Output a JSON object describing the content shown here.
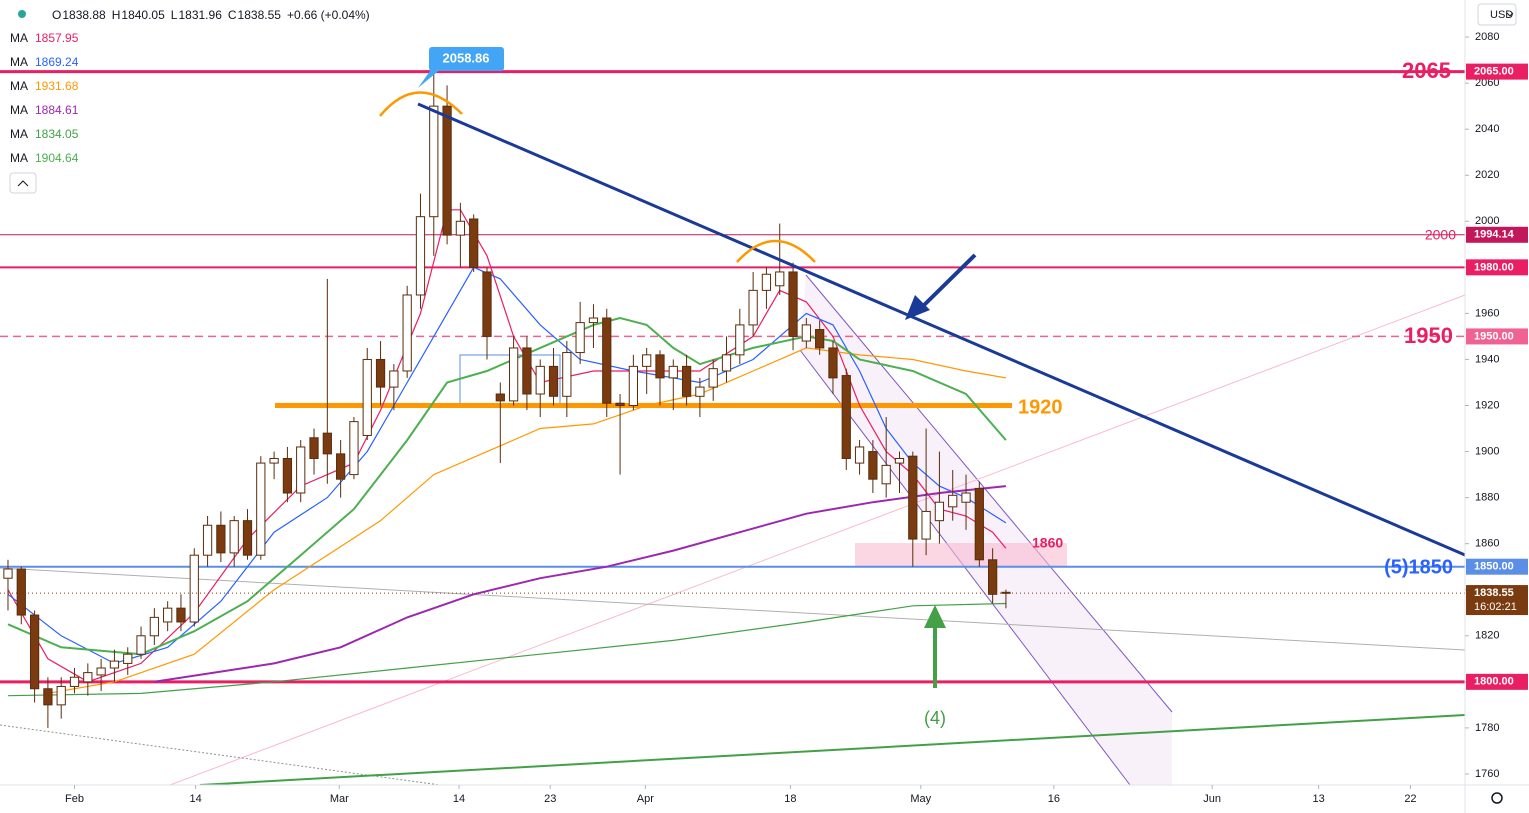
{
  "chart_data": {
    "type": "candlestick",
    "currency": "USD",
    "ohlc_letters": [
      "O",
      "H",
      "L",
      "C"
    ],
    "change": "+0.66 (+0.04%)",
    "countdown": "16:02:21",
    "up_color": "#ffffff",
    "down_color": "#7a3b10",
    "edge_color": "#5a2d0c",
    "xlim": [
      -0.6,
      109.5
    ],
    "ylim": [
      1755.2,
      2096.1
    ],
    "xticks": [
      {
        "value": 5.0,
        "label": "Feb"
      },
      {
        "value": 14.1,
        "label": "14"
      },
      {
        "value": 24.9,
        "label": "Mar"
      },
      {
        "value": 33.9,
        "label": "14"
      },
      {
        "value": 40.75,
        "label": "23"
      },
      {
        "value": 47.9,
        "label": "Apr"
      },
      {
        "value": 58.8,
        "label": "18"
      },
      {
        "value": 68.6,
        "label": "May"
      },
      {
        "value": 78.6,
        "label": "16"
      },
      {
        "value": 90.5,
        "label": "Jun"
      },
      {
        "value": 98.5,
        "label": "13"
      },
      {
        "value": 105.4,
        "label": "22"
      }
    ],
    "yticks": [
      1760,
      1780,
      1800,
      1820,
      1840,
      1860,
      1880,
      1900,
      1920,
      1940,
      1960,
      1980,
      2000,
      2020,
      2040,
      2060,
      2080
    ],
    "ohlc": [
      [
        1845,
        1853,
        1831,
        1849
      ],
      [
        1849,
        1850,
        1825,
        1829
      ],
      [
        1829,
        1831,
        1791,
        1797
      ],
      [
        1797,
        1802,
        1780,
        1790
      ],
      [
        1790,
        1802,
        1784,
        1798
      ],
      [
        1798,
        1806,
        1795,
        1802
      ],
      [
        1800,
        1808,
        1794,
        1804
      ],
      [
        1803,
        1810,
        1796,
        1806
      ],
      [
        1806,
        1814,
        1800,
        1809
      ],
      [
        1808,
        1815,
        1803,
        1812
      ],
      [
        1812,
        1824,
        1810,
        1820
      ],
      [
        1820,
        1832,
        1816,
        1828
      ],
      [
        1826,
        1835,
        1822,
        1832
      ],
      [
        1832,
        1838,
        1822,
        1826
      ],
      [
        1826,
        1858,
        1824,
        1855
      ],
      [
        1855,
        1872,
        1850,
        1868
      ],
      [
        1868,
        1874,
        1852,
        1856
      ],
      [
        1856,
        1872,
        1850,
        1870
      ],
      [
        1870,
        1875,
        1853,
        1855
      ],
      [
        1855,
        1898,
        1853,
        1895
      ],
      [
        1895,
        1900,
        1888,
        1897
      ],
      [
        1897,
        1902,
        1878,
        1882
      ],
      [
        1882,
        1905,
        1878,
        1902
      ],
      [
        1906,
        1910,
        1890,
        1897
      ],
      [
        1908,
        1975,
        1886,
        1899
      ],
      [
        1899,
        1905,
        1880,
        1888
      ],
      [
        1890,
        1915,
        1888,
        1913
      ],
      [
        1907,
        1945,
        1905,
        1940
      ],
      [
        1940,
        1948,
        1920,
        1928
      ],
      [
        1928,
        1938,
        1918,
        1935
      ],
      [
        1935,
        1972,
        1932,
        1968
      ],
      [
        1968,
        2012,
        1962,
        2002
      ],
      [
        2002,
        2070,
        1985,
        2050
      ],
      [
        2050,
        2059,
        1990,
        1994
      ],
      [
        1994,
        2008,
        1980,
        2000
      ],
      [
        2001,
        2003,
        1978,
        1980
      ],
      [
        1978,
        1980,
        1940,
        1950
      ],
      [
        1925,
        1930,
        1895,
        1922
      ],
      [
        1922,
        1950,
        1920,
        1945
      ],
      [
        1945,
        1950,
        1918,
        1925
      ],
      [
        1925,
        1940,
        1915,
        1937
      ],
      [
        1937,
        1945,
        1920,
        1924
      ],
      [
        1924,
        1948,
        1915,
        1943
      ],
      [
        1943,
        1965,
        1938,
        1956
      ],
      [
        1956,
        1964,
        1945,
        1958
      ],
      [
        1958,
        1962,
        1915,
        1921
      ],
      [
        1921,
        1925,
        1890,
        1920
      ],
      [
        1920,
        1942,
        1918,
        1937
      ],
      [
        1937,
        1945,
        1925,
        1942
      ],
      [
        1942,
        1944,
        1920,
        1932
      ],
      [
        1932,
        1940,
        1918,
        1937
      ],
      [
        1937,
        1942,
        1920,
        1924
      ],
      [
        1924,
        1932,
        1915,
        1928
      ],
      [
        1928,
        1940,
        1922,
        1936
      ],
      [
        1935,
        1950,
        1930,
        1942
      ],
      [
        1942,
        1962,
        1938,
        1955
      ],
      [
        1955,
        1978,
        1950,
        1970
      ],
      [
        1970,
        1980,
        1962,
        1977
      ],
      [
        1972,
        1999,
        1968,
        1978
      ],
      [
        1978,
        1982,
        1944,
        1950
      ],
      [
        1948,
        1958,
        1945,
        1955
      ],
      [
        1953,
        1957,
        1942,
        1945
      ],
      [
        1945,
        1948,
        1925,
        1932
      ],
      [
        1933,
        1936,
        1892,
        1897
      ],
      [
        1895,
        1905,
        1890,
        1902
      ],
      [
        1900,
        1905,
        1882,
        1888
      ],
      [
        1886,
        1915,
        1880,
        1894
      ],
      [
        1895,
        1900,
        1882,
        1897
      ],
      [
        1898,
        1900,
        1850,
        1862
      ],
      [
        1862,
        1910,
        1855,
        1874
      ],
      [
        1870,
        1900,
        1860,
        1878
      ],
      [
        1876,
        1892,
        1870,
        1881
      ],
      [
        1878,
        1890,
        1866,
        1882
      ],
      [
        1884,
        1887,
        1850,
        1853
      ],
      [
        1853,
        1858,
        1834,
        1838
      ],
      [
        1838.88,
        1840.05,
        1831.96,
        1838.55
      ]
    ],
    "series": [
      {
        "name": "MA",
        "color": "#e91e63",
        "last": 1857.95,
        "x": [
          0,
          3,
          6,
          10,
          14,
          18,
          22,
          26,
          28,
          31,
          33,
          34,
          36,
          38,
          40,
          44,
          48,
          52,
          56,
          58,
          60,
          62,
          64,
          66,
          68,
          70,
          72,
          74,
          75
        ],
        "values": [
          1840,
          1810,
          1800,
          1808,
          1830,
          1862,
          1885,
          1895,
          1918,
          1960,
          2005,
          2005,
          1985,
          1950,
          1930,
          1935,
          1935,
          1935,
          1950,
          1970,
          1965,
          1950,
          1920,
          1900,
          1890,
          1875,
          1872,
          1865,
          1858
        ]
      },
      {
        "name": "MA",
        "color": "#2962ff",
        "last": 1869.24,
        "x": [
          0,
          4,
          8,
          12,
          16,
          20,
          24,
          27,
          30,
          32,
          35,
          37,
          40,
          43,
          47,
          52,
          56,
          60,
          62,
          64,
          66,
          68,
          70,
          72,
          75
        ],
        "values": [
          1838,
          1820,
          1808,
          1815,
          1835,
          1865,
          1880,
          1900,
          1930,
          1950,
          1980,
          1975,
          1955,
          1940,
          1935,
          1930,
          1940,
          1960,
          1955,
          1935,
          1910,
          1895,
          1885,
          1880,
          1869
        ]
      },
      {
        "name": "MA",
        "color": "#ff9800",
        "last": 1931.68,
        "x": [
          3,
          8,
          14,
          20,
          24,
          28,
          32,
          36,
          40,
          44,
          48,
          52,
          56,
          60,
          64,
          68,
          72,
          75
        ],
        "values": [
          1795,
          1800,
          1812,
          1840,
          1855,
          1870,
          1890,
          1900,
          1910,
          1912,
          1920,
          1925,
          1935,
          1945,
          1942,
          1940,
          1935,
          1932
        ]
      },
      {
        "name": "MA",
        "color": "#9c27b0",
        "last": 1884.61,
        "x": [
          11,
          20,
          25,
          30,
          35,
          40,
          45,
          50,
          55,
          60,
          65,
          70,
          75
        ],
        "values": [
          1800,
          1808,
          1815,
          1828,
          1838,
          1845,
          1850,
          1857,
          1865,
          1873,
          1878,
          1882,
          1885
        ]
      },
      {
        "name": "MA",
        "color": "#43a047",
        "last": 1834.05,
        "x": [
          0,
          10,
          20,
          30,
          40,
          50,
          60,
          68,
          75
        ],
        "values": [
          1794,
          1795,
          1800,
          1806,
          1812,
          1818,
          1826,
          1833,
          1834
        ]
      },
      {
        "name": "MA",
        "color": "#4caf50",
        "last": 1904.64,
        "x": [
          0,
          4,
          10,
          14,
          18,
          22,
          26,
          28,
          30,
          33,
          36,
          40,
          44,
          46,
          48,
          50,
          52,
          56,
          60,
          62,
          64,
          68,
          72,
          75
        ],
        "values": [
          1825,
          1815,
          1812,
          1822,
          1835,
          1855,
          1875,
          1890,
          1905,
          1930,
          1935,
          1945,
          1955,
          1958,
          1955,
          1945,
          1938,
          1945,
          1950,
          1948,
          1940,
          1935,
          1925,
          1905
        ]
      }
    ],
    "levels": [
      {
        "value": 2065,
        "label": "2065.00",
        "color": "#e91e63",
        "width": 3,
        "dash": false
      },
      {
        "value": 1994.14,
        "label": "1994.14",
        "color": "#c2185b",
        "width": 1,
        "dash": false
      },
      {
        "value": 1980,
        "label": "1980.00",
        "color": "#e91e63",
        "width": 2,
        "dash": false
      },
      {
        "value": 1950,
        "label": "1950.00",
        "color": "#f06292",
        "width": 1.5,
        "dash": true
      },
      {
        "value": 1850,
        "label": "1850.00",
        "color": "#5b8ee6",
        "width": 2,
        "dash": false
      },
      {
        "value": 1800,
        "label": "1800.00",
        "color": "#e91e63",
        "width": 3,
        "dash": false
      }
    ],
    "annotations": [
      2065,
      2000,
      1950,
      1920,
      "(5)1850",
      1860,
      "(4)",
      2058.86
    ]
  }
}
